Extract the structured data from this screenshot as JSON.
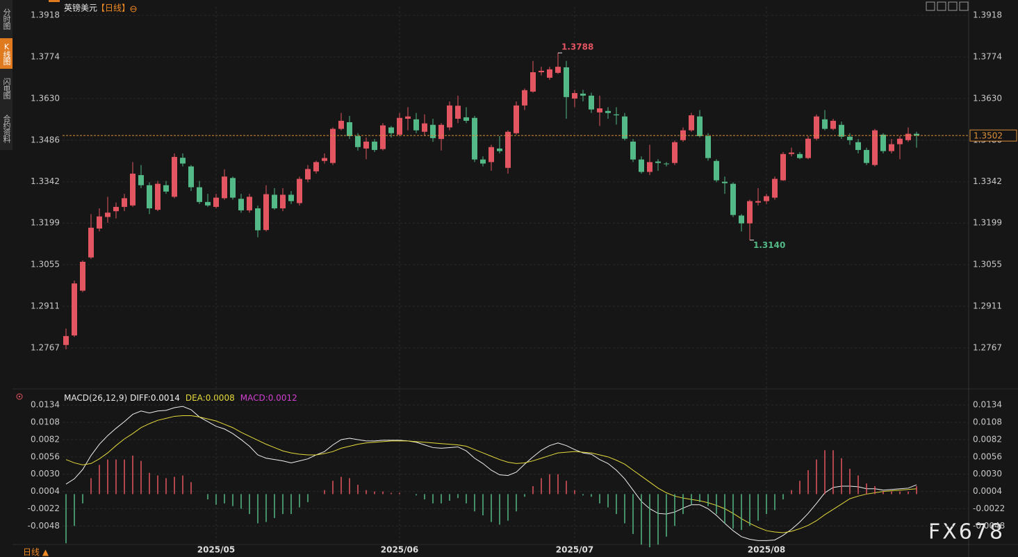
{
  "sidebar": {
    "tabs": [
      "分时图",
      "K线图",
      "闪电图",
      "合约资料"
    ],
    "active": "K线图"
  },
  "period_label": "日线 ▲",
  "watermark": "FX678",
  "chart_data": [
    {
      "type": "candlestick",
      "title": "英镑美元",
      "subtitle": "【日线】",
      "up_color": "#e35561",
      "down_color": "#53b987",
      "grid": true,
      "ylim": [
        1.2637,
        1.3947
      ],
      "yticks": [
        1.3918,
        1.3774,
        {
          "value": 1.363,
          "label": "1.3630"
        },
        1.3486,
        1.3342,
        1.3199,
        1.3055,
        1.2911,
        1.2767
      ],
      "last_price": 1.3502,
      "last_price_color": "#e0913a",
      "annotations": [
        {
          "index": 59,
          "value": 1.3788,
          "label": "1.3788"
        },
        {
          "index": 82,
          "value": 1.314,
          "label": "1.3140"
        }
      ],
      "categories": [
        null,
        null,
        null,
        null,
        null,
        null,
        null,
        null,
        null,
        null,
        null,
        null,
        null,
        null,
        null,
        null,
        null,
        null,
        "2025/05",
        null,
        null,
        null,
        null,
        null,
        null,
        null,
        null,
        null,
        null,
        null,
        null,
        null,
        null,
        null,
        null,
        null,
        null,
        null,
        null,
        null,
        "2025/06",
        null,
        null,
        null,
        null,
        null,
        null,
        null,
        null,
        null,
        null,
        null,
        null,
        null,
        null,
        null,
        null,
        null,
        null,
        null,
        null,
        "2025/07",
        null,
        null,
        null,
        null,
        null,
        null,
        null,
        null,
        null,
        null,
        null,
        null,
        null,
        null,
        null,
        null,
        null,
        null,
        null,
        null,
        null,
        null,
        "2025/08",
        null,
        null,
        null,
        null,
        null,
        null,
        null,
        null,
        null,
        null,
        null,
        null,
        null,
        null,
        null,
        null,
        null,
        null
      ],
      "open": [
        1.2777,
        1.281,
        1.2965,
        1.308,
        1.318,
        1.322,
        1.324,
        1.3255,
        1.326,
        1.3365,
        1.333,
        1.3245,
        1.333,
        1.329,
        1.3425,
        1.3395,
        1.3323,
        1.3272,
        1.3255,
        1.3285,
        1.3355,
        1.3283,
        1.3243,
        1.325,
        1.3175,
        1.3297,
        1.325,
        1.3297,
        1.3268,
        1.335,
        1.3378,
        1.3414,
        1.3407,
        1.3525,
        1.3548,
        1.35,
        1.3457,
        1.3481,
        1.3455,
        1.353,
        1.3505,
        1.356,
        1.3558,
        1.3515,
        1.3539,
        1.349,
        1.353,
        1.356,
        1.3565,
        1.3563,
        1.3419,
        1.341,
        1.3457,
        1.339,
        1.351,
        1.3606,
        1.3654,
        1.3721,
        1.3702,
        1.3719,
        1.3738,
        1.363,
        1.3647,
        1.364,
        1.3582,
        1.3587,
        1.3575,
        1.3568,
        1.3481,
        1.3419,
        1.3376,
        1.3412,
        1.3405,
        1.3407,
        1.3486,
        1.352,
        1.3568,
        1.35,
        1.3414,
        1.3342,
        1.3335,
        1.3225,
        1.3198,
        1.327,
        1.3275,
        1.3287,
        1.3347,
        1.3438,
        1.3438,
        1.3424,
        1.3491,
        1.3558,
        1.3525,
        1.3539,
        1.3498,
        1.3479,
        1.3452,
        1.34,
        1.3505,
        1.3448,
        1.3472,
        1.3486,
        1.3508
      ],
      "high": [
        1.2834,
        1.3,
        1.307,
        1.323,
        1.325,
        1.329,
        1.327,
        1.33,
        1.341,
        1.34,
        1.334,
        1.3345,
        1.3345,
        1.344,
        1.344,
        1.34,
        1.3345,
        1.33,
        1.33,
        1.3385,
        1.336,
        1.33,
        1.33,
        1.326,
        1.333,
        1.332,
        1.332,
        1.331,
        1.336,
        1.34,
        1.3415,
        1.344,
        1.353,
        1.358,
        1.357,
        1.351,
        1.3495,
        1.349,
        1.3545,
        1.3535,
        1.358,
        1.36,
        1.358,
        1.3575,
        1.356,
        1.3545,
        1.362,
        1.364,
        1.36,
        1.357,
        1.343,
        1.347,
        1.35,
        1.352,
        1.362,
        1.3665,
        1.376,
        1.374,
        1.374,
        1.3788,
        1.376,
        1.366,
        1.366,
        1.365,
        1.364,
        1.36,
        1.36,
        1.358,
        1.349,
        1.343,
        1.347,
        1.342,
        1.341,
        1.3485,
        1.353,
        1.358,
        1.359,
        1.351,
        1.342,
        1.336,
        1.334,
        1.323,
        1.328,
        1.332,
        1.33,
        1.336,
        1.3445,
        1.346,
        1.3445,
        1.35,
        1.3575,
        1.359,
        1.356,
        1.355,
        1.351,
        1.349,
        1.346,
        1.3525,
        1.351,
        1.349,
        1.35,
        1.353,
        1.3515
      ],
      "low": [
        1.2762,
        1.2805,
        1.296,
        1.3075,
        1.317,
        1.32,
        1.3215,
        1.324,
        1.3255,
        1.332,
        1.323,
        1.324,
        1.33,
        1.3285,
        1.3395,
        1.331,
        1.3265,
        1.3255,
        1.325,
        1.328,
        1.328,
        1.3235,
        1.3235,
        1.315,
        1.317,
        1.3245,
        1.324,
        1.3265,
        1.326,
        1.334,
        1.337,
        1.3405,
        1.34,
        1.352,
        1.349,
        1.345,
        1.342,
        1.3445,
        1.345,
        1.3495,
        1.35,
        1.352,
        1.351,
        1.35,
        1.348,
        1.345,
        1.352,
        1.3545,
        1.3545,
        1.341,
        1.3395,
        1.338,
        1.344,
        1.337,
        1.3505,
        1.359,
        1.365,
        1.371,
        1.3695,
        1.3715,
        1.356,
        1.36,
        1.362,
        1.358,
        1.3535,
        1.356,
        1.354,
        1.3485,
        1.341,
        1.337,
        1.3365,
        1.338,
        1.3395,
        1.34,
        1.348,
        1.3515,
        1.3495,
        1.3415,
        1.334,
        1.33,
        1.322,
        1.317,
        1.314,
        1.326,
        1.3265,
        1.328,
        1.3345,
        1.343,
        1.342,
        1.342,
        1.3485,
        1.352,
        1.352,
        1.349,
        1.347,
        1.344,
        1.34,
        1.3395,
        1.344,
        1.344,
        1.342,
        1.348,
        1.346
      ],
      "close": [
        1.2808,
        1.299,
        1.3065,
        1.3183,
        1.3222,
        1.3235,
        1.3255,
        1.3285,
        1.337,
        1.333,
        1.325,
        1.3335,
        1.3308,
        1.3428,
        1.3405,
        1.3323,
        1.3272,
        1.326,
        1.3287,
        1.336,
        1.3287,
        1.3243,
        1.329,
        1.3174,
        1.3299,
        1.325,
        1.3297,
        1.3275,
        1.3352,
        1.3386,
        1.341,
        1.3424,
        1.3525,
        1.3553,
        1.35,
        1.3462,
        1.3481,
        1.3452,
        1.3537,
        1.351,
        1.3563,
        1.3568,
        1.352,
        1.3544,
        1.3493,
        1.3539,
        1.3606,
        1.3605,
        1.3553,
        1.3419,
        1.3405,
        1.3462,
        1.3448,
        1.3515,
        1.3606,
        1.3659,
        1.3721,
        1.3726,
        1.3731,
        1.374,
        1.3635,
        1.3649,
        1.364,
        1.3592,
        1.3596,
        1.358,
        1.3572,
        1.3491,
        1.3419,
        1.3376,
        1.341,
        1.3407,
        1.3403,
        1.3479,
        1.352,
        1.3572,
        1.35,
        1.3424,
        1.3347,
        1.3337,
        1.3227,
        1.3198,
        1.3275,
        1.3275,
        1.3292,
        1.3352,
        1.3438,
        1.3443,
        1.3424,
        1.3491,
        1.3568,
        1.3525,
        1.3553,
        1.3498,
        1.3486,
        1.3452,
        1.3407,
        1.352,
        1.3448,
        1.3472,
        1.3491,
        1.3508,
        1.3502
      ]
    },
    {
      "type": "macd",
      "title": "MACD(26,12,9)",
      "grid": true,
      "ylim": [
        -0.008,
        0.0153
      ],
      "yticks": [
        0.0134,
        0.0108,
        0.0082,
        0.0056,
        {
          "value": 0.003,
          "label": "0.0030"
        },
        0.0004,
        -0.0022,
        -0.0048
      ],
      "series": [
        {
          "name": "DIFF:",
          "type": "line",
          "color": "#f0f0f0",
          "values": [
            0.0015,
            0.0023,
            0.0037,
            0.0058,
            0.0075,
            0.0088,
            0.0099,
            0.0109,
            0.012,
            0.0125,
            0.0122,
            0.0125,
            0.0126,
            0.013,
            0.0132,
            0.0127,
            0.0116,
            0.0109,
            0.0102,
            0.0098,
            0.0091,
            0.0082,
            0.0072,
            0.0059,
            0.0054,
            0.0052,
            0.005,
            0.0047,
            0.005,
            0.0053,
            0.0059,
            0.0064,
            0.0074,
            0.0082,
            0.0084,
            0.0082,
            0.008,
            0.008,
            0.0081,
            0.0081,
            0.0081,
            0.008,
            0.0078,
            0.0074,
            0.007,
            0.0069,
            0.007,
            0.0071,
            0.0065,
            0.0054,
            0.0046,
            0.0036,
            0.0029,
            0.0028,
            0.0033,
            0.0045,
            0.0056,
            0.0066,
            0.0073,
            0.0077,
            0.0073,
            0.0067,
            0.0062,
            0.006,
            0.0052,
            0.0046,
            0.0036,
            0.0023,
            0.0006,
            -0.0011,
            -0.0022,
            -0.0029,
            -0.003,
            -0.0027,
            -0.0021,
            -0.0016,
            -0.0016,
            -0.0022,
            -0.0032,
            -0.0044,
            -0.0055,
            -0.0064,
            -0.0068,
            -0.007,
            -0.007,
            -0.0069,
            -0.0062,
            -0.0053,
            -0.0042,
            -0.0029,
            -0.0014,
            0.0002,
            0.001,
            0.0012,
            0.0012,
            0.0011,
            0.0008,
            0.0008,
            0.0006,
            0.0007,
            0.0008,
            0.0009,
            0.0014
          ]
        },
        {
          "name": "DEA:",
          "type": "line",
          "color": "#e6dc3c",
          "values": [
            0.0052,
            0.0047,
            0.0044,
            0.0046,
            0.0053,
            0.0062,
            0.0073,
            0.0083,
            0.0091,
            0.01,
            0.0106,
            0.0111,
            0.0114,
            0.0117,
            0.0118,
            0.0118,
            0.0116,
            0.0113,
            0.011,
            0.0105,
            0.01,
            0.0093,
            0.0087,
            0.0081,
            0.0075,
            0.007,
            0.0065,
            0.0062,
            0.006,
            0.0059,
            0.0059,
            0.0061,
            0.0064,
            0.0069,
            0.0072,
            0.0075,
            0.0077,
            0.0078,
            0.0079,
            0.008,
            0.008,
            0.008,
            0.0079,
            0.0078,
            0.0077,
            0.0076,
            0.0075,
            0.0074,
            0.0072,
            0.0067,
            0.0062,
            0.0057,
            0.0052,
            0.0048,
            0.0046,
            0.0047,
            0.005,
            0.0054,
            0.0058,
            0.0062,
            0.0063,
            0.0064,
            0.0063,
            0.0062,
            0.0059,
            0.0056,
            0.0051,
            0.0045,
            0.0036,
            0.0027,
            0.0018,
            0.0009,
            0.0002,
            -0.0003,
            -0.0006,
            -0.0008,
            -0.001,
            -0.0013,
            -0.0017,
            -0.0022,
            -0.0029,
            -0.0037,
            -0.0044,
            -0.005,
            -0.0055,
            -0.0057,
            -0.0058,
            -0.0056,
            -0.0052,
            -0.0047,
            -0.004,
            -0.0031,
            -0.0023,
            -0.0015,
            -0.0007,
            -0.0003,
            0,
            0.0002,
            0.0004,
            0.0005,
            0.0006,
            0.0007,
            0.0008
          ]
        },
        {
          "name": "MACD:",
          "type": "bar",
          "color": "#d040d0",
          "up_color": "#e35561",
          "down_color": "#53b987",
          "values": [
            -0.0074,
            -0.0048,
            -0.0014,
            0.0024,
            0.0044,
            0.0052,
            0.0052,
            0.0052,
            0.0058,
            0.005,
            0.0032,
            0.0028,
            0.0024,
            0.0026,
            0.0028,
            0.0018,
            0,
            -0.0008,
            -0.0016,
            -0.0014,
            -0.0018,
            -0.0022,
            -0.003,
            -0.0044,
            -0.0042,
            -0.0036,
            -0.003,
            -0.003,
            -0.002,
            -0.0012,
            0,
            0.0006,
            0.002,
            0.0026,
            0.0024,
            0.0014,
            0.0006,
            0.0004,
            0.0004,
            0.0002,
            0.0002,
            0,
            -0.0002,
            -0.0008,
            -0.0014,
            -0.0014,
            -0.001,
            -0.0006,
            -0.0014,
            -0.0026,
            -0.0032,
            -0.0042,
            -0.0046,
            -0.004,
            -0.0026,
            -0.0004,
            0.0012,
            0.0024,
            0.003,
            0.003,
            0.002,
            0.0006,
            -0.0002,
            -0.0004,
            -0.0014,
            -0.002,
            -0.003,
            -0.0044,
            -0.006,
            -0.0076,
            -0.008,
            -0.0076,
            -0.0064,
            -0.0048,
            -0.003,
            -0.0016,
            -0.0012,
            -0.0018,
            -0.003,
            -0.0044,
            -0.0052,
            -0.0054,
            -0.0048,
            -0.004,
            -0.003,
            -0.0024,
            -0.0008,
            0.0006,
            0.002,
            0.0036,
            0.0052,
            0.0066,
            0.0066,
            0.0054,
            0.0038,
            0.0028,
            0.0016,
            0.0012,
            0.0004,
            0.0004,
            0.0004,
            0.0004,
            0.0012
          ]
        }
      ]
    }
  ]
}
